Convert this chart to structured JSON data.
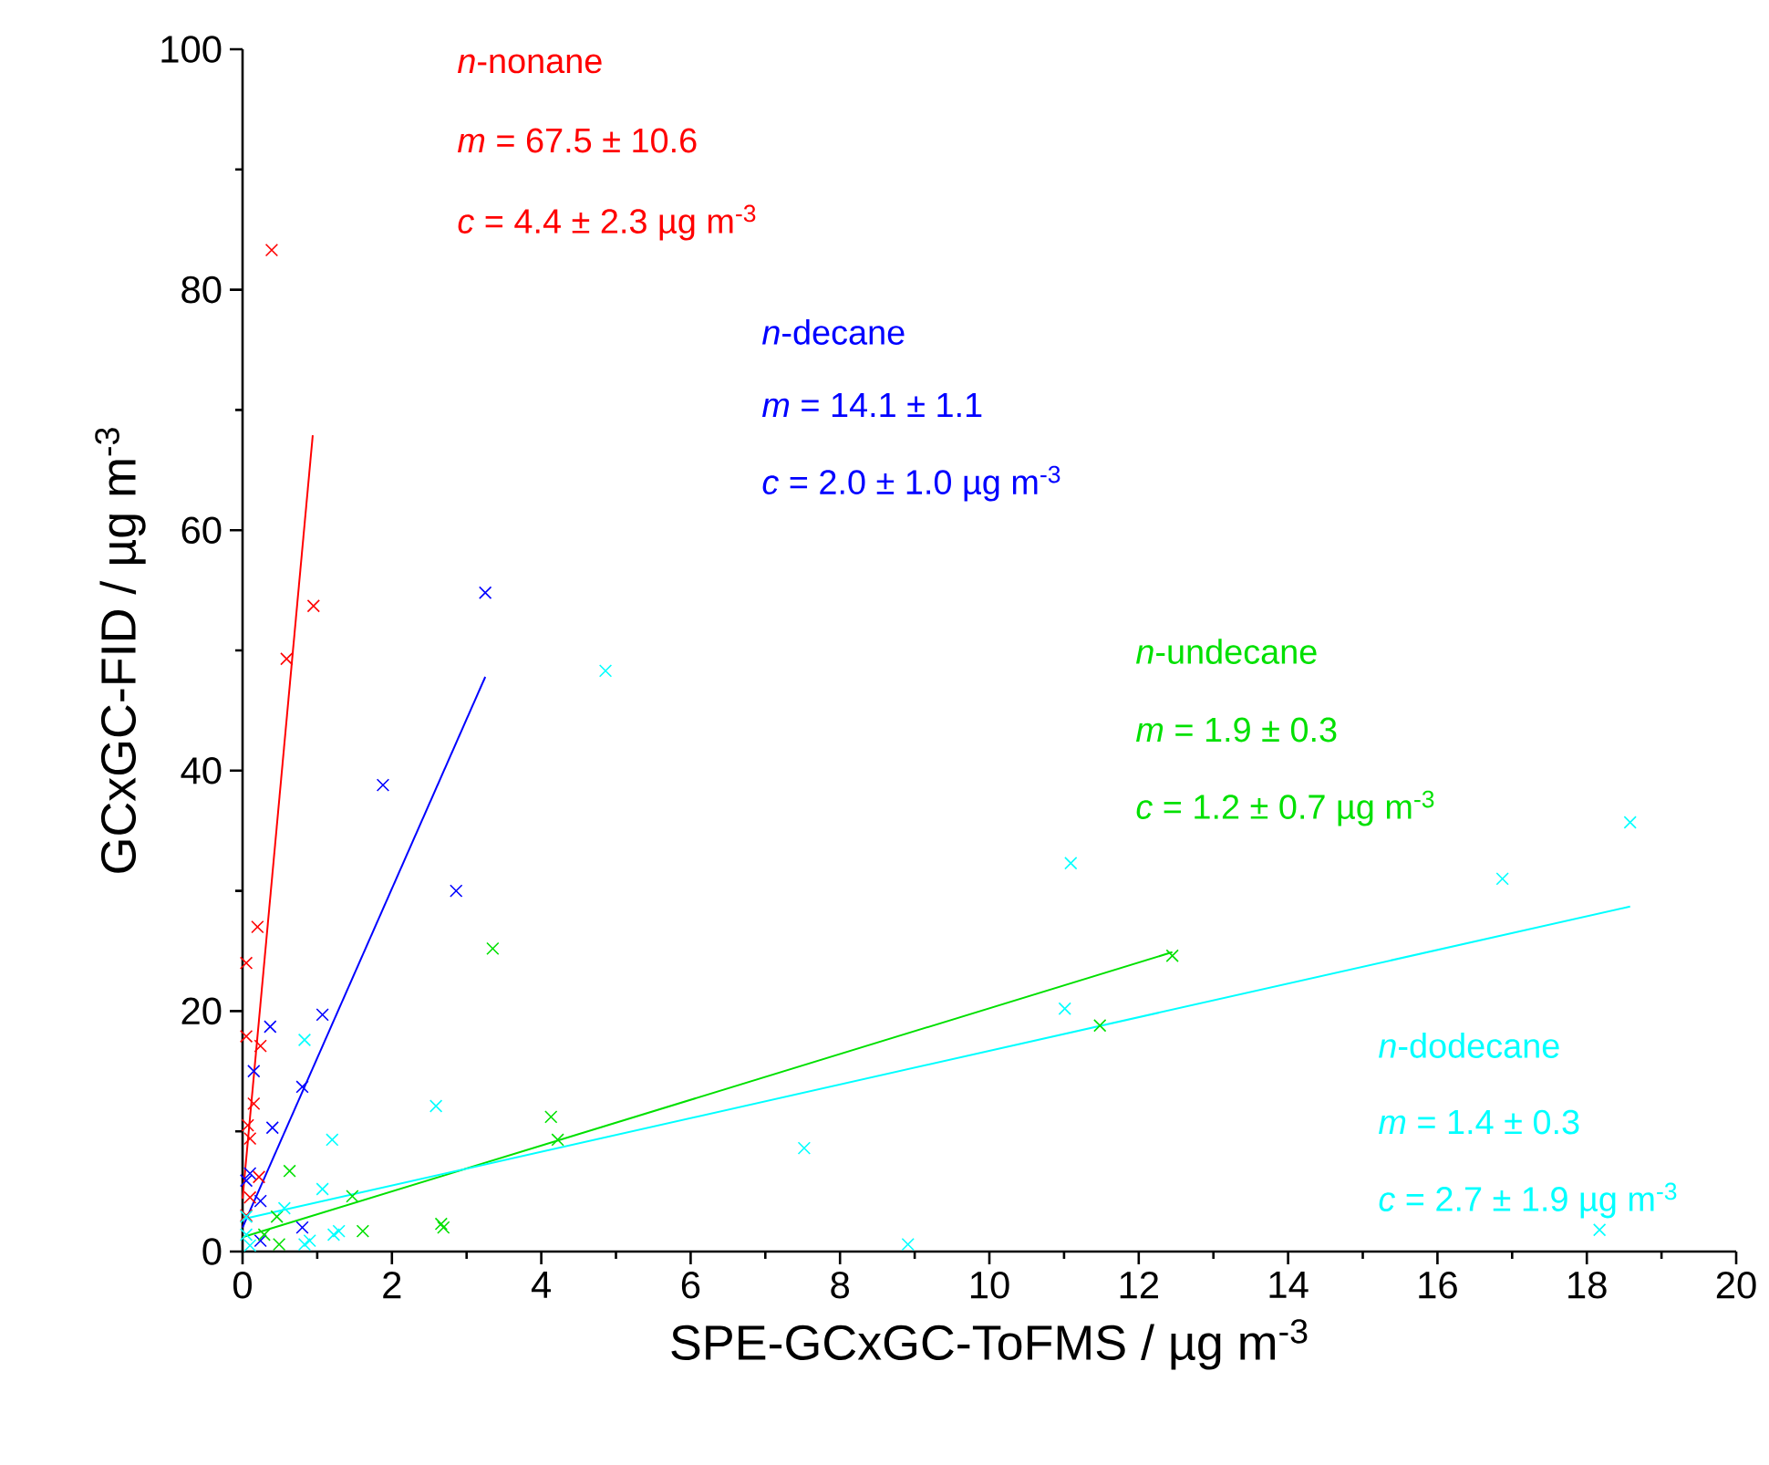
{
  "chart_data": {
    "type": "scatter",
    "xlabel": "SPE-GCxGC-ToFMS / µg m$^{-3}$",
    "ylabel": "GCxGC-FID / µg m$^{-3}$",
    "xlim": [
      0,
      20
    ],
    "ylim": [
      0,
      100
    ],
    "xticks": [
      0,
      2,
      4,
      6,
      8,
      10,
      12,
      14,
      16,
      18,
      20
    ],
    "yticks": [
      0,
      20,
      40,
      60,
      80,
      100
    ],
    "marker": "cross",
    "grid": false,
    "series": [
      {
        "name": "*n*-nonane",
        "color": "#ff0000",
        "x": [
          0.39,
          0.95,
          0.59,
          0.2,
          0.05,
          0.05,
          0.24,
          0.15,
          0.07,
          0.1,
          0.22,
          0.1,
          0.05
        ],
        "values": [
          83.3,
          53.7,
          49.3,
          27,
          24,
          17.9,
          17.1,
          12.3,
          10.5,
          9.4,
          6.2,
          4.5,
          3
        ]
      },
      {
        "name": "*n*-decane",
        "color": "#0000ff",
        "x": [
          3.25,
          1.88,
          2.86,
          1.07,
          0.37,
          0.15,
          0.8,
          0.4,
          0.1,
          0.24,
          0.8,
          0.24,
          0.05
        ],
        "values": [
          54.8,
          38.8,
          30.0,
          19.7,
          18.7,
          15.0,
          13.7,
          10.3,
          6.5,
          4.2,
          2.0,
          0.9,
          5.9
        ]
      },
      {
        "name": "*n*-undecane",
        "color": "#00e000",
        "x": [
          12.45,
          11.48,
          3.35,
          4.13,
          4.22,
          0.63,
          1.47,
          1.61,
          2.66,
          2.69,
          0.46,
          0.29,
          0.49
        ],
        "values": [
          24.6,
          18.8,
          25.2,
          11.2,
          9.3,
          6.7,
          4.6,
          1.7,
          2.3,
          2.0,
          2.9,
          1.4,
          0.6
        ]
      },
      {
        "name": "*n*-dodecane",
        "color": "#00ffff",
        "x": [
          4.86,
          16.87,
          18.58,
          11.09,
          11.01,
          18.17,
          7.52,
          8.91,
          0.83,
          2.59,
          1.2,
          1.07,
          1.29,
          1.22,
          0.9,
          0.83,
          0.56,
          0.05,
          0.05,
          0.1
        ],
        "values": [
          48.3,
          31.0,
          35.7,
          32.3,
          20.2,
          1.8,
          8.6,
          0.6,
          17.6,
          12.1,
          9.3,
          5.2,
          1.7,
          1.4,
          0.9,
          0.6,
          3.6,
          2.9,
          1.4,
          0.5
        ]
      },
      {
        "type": "line",
        "marker": "none",
        "color": "#ff0000",
        "x": [
          0,
          0.94
        ],
        "values": [
          4.4,
          67.9
        ]
      },
      {
        "type": "line",
        "marker": "none",
        "color": "#0000ff",
        "x": [
          0,
          3.25
        ],
        "values": [
          2.0,
          47.8
        ]
      },
      {
        "type": "line",
        "marker": "none",
        "color": "#00e000",
        "x": [
          0,
          12.45
        ],
        "values": [
          1.2,
          24.9
        ]
      },
      {
        "type": "line",
        "marker": "none",
        "color": "#00ffff",
        "x": [
          0,
          18.58
        ],
        "values": [
          2.7,
          28.7
        ]
      }
    ],
    "annotations": [
      "*m* = 67.5 ± 10.6",
      "*c* = 4.4 ± 2.3 µg m$^{-3}$",
      "*m* = 14.1 ± 1.1",
      "*c* = 2.0 ± 1.0 µg m$^{-3}$",
      "*m* = 1.9 ± 0.3",
      "*c* = 1.2 ± 0.7 µg m$^{-3}$",
      "*m* = 1.4 ± 0.3",
      "*c* = 2.7 ± 1.9 µg m$^{-3}$"
    ]
  }
}
